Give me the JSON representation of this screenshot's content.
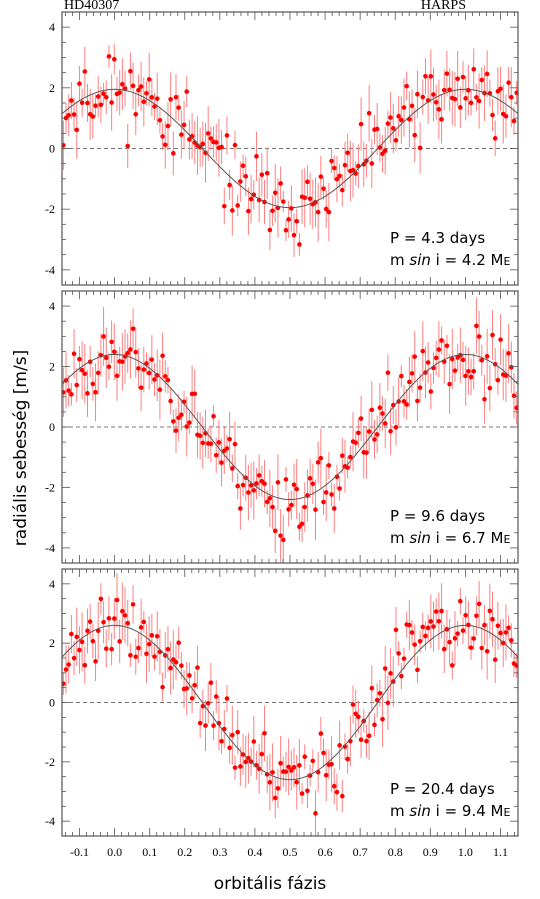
{
  "header": {
    "left_label": "HD40307",
    "right_label": "HARPS"
  },
  "ylabel": "radiális sebesség [m/s]",
  "xlabel": "orbitális fázis",
  "colors": {
    "points": "#ff0000",
    "errorbars": "#ff8080",
    "model": "#555555",
    "zero_line": "#777777",
    "frame": "#555555"
  },
  "chart_data": [
    {
      "type": "scatter",
      "panel": 1,
      "annotation": {
        "period": "P = 4.3 days",
        "mass_prefix": "m ",
        "mass_italic": "sin",
        "mass_suffix": " i = 4.2 M",
        "mass_sub": "E"
      },
      "xlim": [
        -0.15,
        1.15
      ],
      "ylim": [
        -4.5,
        4.5
      ],
      "x_ticks": [
        "-0.1",
        "0.0",
        "0.1",
        "0.2",
        "0.3",
        "0.4",
        "0.5",
        "0.6",
        "0.7",
        "0.8",
        "0.9",
        "1.0",
        "1.1"
      ],
      "y_ticks": [
        "-4",
        "-2",
        "0",
        "2",
        "4"
      ],
      "model": {
        "amplitude": 1.95,
        "phase_of_max": 0.0
      },
      "seed": 11,
      "n_points": 170,
      "scatter_sd": 0.85
    },
    {
      "type": "scatter",
      "panel": 2,
      "annotation": {
        "period": "P = 9.6 days",
        "mass_prefix": "m ",
        "mass_italic": "sin",
        "mass_suffix": " i = 6.7 M",
        "mass_sub": "E"
      },
      "xlim": [
        -0.15,
        1.15
      ],
      "ylim": [
        -4.5,
        4.5
      ],
      "x_ticks": [
        "-0.1",
        "0.0",
        "0.1",
        "0.2",
        "0.3",
        "0.4",
        "0.5",
        "0.6",
        "0.7",
        "0.8",
        "0.9",
        "1.0",
        "1.1"
      ],
      "y_ticks": [
        "-4",
        "-2",
        "0",
        "2",
        "4"
      ],
      "model": {
        "amplitude": 2.4,
        "phase_of_max": 0.0
      },
      "seed": 23,
      "n_points": 170,
      "scatter_sd": 0.85
    },
    {
      "type": "scatter",
      "panel": 3,
      "annotation": {
        "period": "P = 20.4 days",
        "mass_prefix": "m ",
        "mass_italic": "sin",
        "mass_suffix": " i = 9.4 M",
        "mass_sub": "E"
      },
      "xlim": [
        -0.15,
        1.15
      ],
      "ylim": [
        -4.5,
        4.5
      ],
      "x_ticks": [
        "-0.1",
        "0.0",
        "0.1",
        "0.2",
        "0.3",
        "0.4",
        "0.5",
        "0.6",
        "0.7",
        "0.8",
        "0.9",
        "1.0",
        "1.1"
      ],
      "y_ticks": [
        "-4",
        "-2",
        "0",
        "2",
        "4"
      ],
      "model": {
        "amplitude": 2.6,
        "phase_of_max": 0.0
      },
      "seed": 37,
      "n_points": 170,
      "scatter_sd": 0.85
    }
  ]
}
